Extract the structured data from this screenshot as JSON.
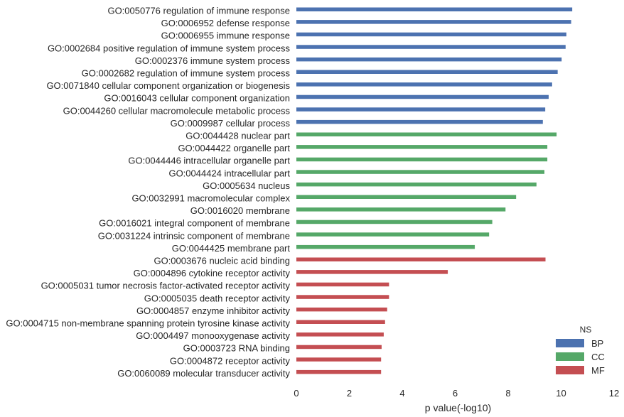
{
  "chart_data": {
    "type": "bar",
    "orientation": "horizontal",
    "xlabel": "p value(-log10)",
    "ylabel": "",
    "title": "",
    "xlim": [
      0,
      12
    ],
    "xticks": [
      "0",
      "2",
      "4",
      "6",
      "8",
      "10",
      "12"
    ],
    "grid": false,
    "legend": {
      "title": "NS",
      "placement": "bottom-right",
      "entries": [
        "BP",
        "CC",
        "MF"
      ]
    },
    "colors": {
      "BP": "#4c72b0",
      "CC": "#55a868",
      "MF": "#c44e52"
    },
    "categories": [
      "GO:0050776 regulation of immune response",
      "GO:0006952 defense response",
      "GO:0006955 immune response",
      "GO:0002684 positive regulation of immune system process",
      "GO:0002376 immune system process",
      "GO:0002682 regulation of immune system process",
      "GO:0071840 cellular component organization or biogenesis",
      "GO:0016043 cellular component organization",
      "GO:0044260 cellular macromolecule metabolic process",
      "GO:0009987 cellular process",
      "GO:0044428 nuclear part",
      "GO:0044422 organelle part",
      "GO:0044446 intracellular organelle part",
      "GO:0044424 intracellular part",
      "GO:0005634 nucleus",
      "GO:0032991 macromolecular complex",
      "GO:0016020 membrane",
      "GO:0016021 integral component of membrane",
      "GO:0031224 intrinsic component of membrane",
      "GO:0044425 membrane part",
      "GO:0003676 nucleic acid binding",
      "GO:0004896 cytokine receptor activity",
      "GO:0005031 tumor necrosis factor-activated receptor activity",
      "GO:0005035 death receptor activity",
      "GO:0004857 enzyme inhibitor activity",
      "GO:0004715 non-membrane spanning protein tyrosine kinase activity",
      "GO:0004497 monooxygenase activity",
      "GO:0003723 RNA binding",
      "GO:0004872 receptor activity",
      "GO:0060089 molecular transducer activity"
    ],
    "series": [
      {
        "name": "BP",
        "values": [
          10.42,
          10.38,
          10.2,
          10.17,
          10.02,
          9.87,
          9.66,
          9.53,
          9.4,
          9.31,
          null,
          null,
          null,
          null,
          null,
          null,
          null,
          null,
          null,
          null,
          null,
          null,
          null,
          null,
          null,
          null,
          null,
          null,
          null,
          null
        ]
      },
      {
        "name": "CC",
        "values": [
          null,
          null,
          null,
          null,
          null,
          null,
          null,
          null,
          null,
          null,
          9.83,
          9.48,
          9.48,
          9.37,
          9.07,
          8.3,
          7.9,
          7.4,
          7.28,
          6.74,
          null,
          null,
          null,
          null,
          null,
          null,
          null,
          null,
          null,
          null
        ]
      },
      {
        "name": "MF",
        "values": [
          null,
          null,
          null,
          null,
          null,
          null,
          null,
          null,
          null,
          null,
          null,
          null,
          null,
          null,
          null,
          null,
          null,
          null,
          null,
          null,
          9.41,
          5.72,
          3.5,
          3.5,
          3.43,
          3.35,
          3.3,
          3.22,
          3.2,
          3.2
        ]
      }
    ]
  }
}
